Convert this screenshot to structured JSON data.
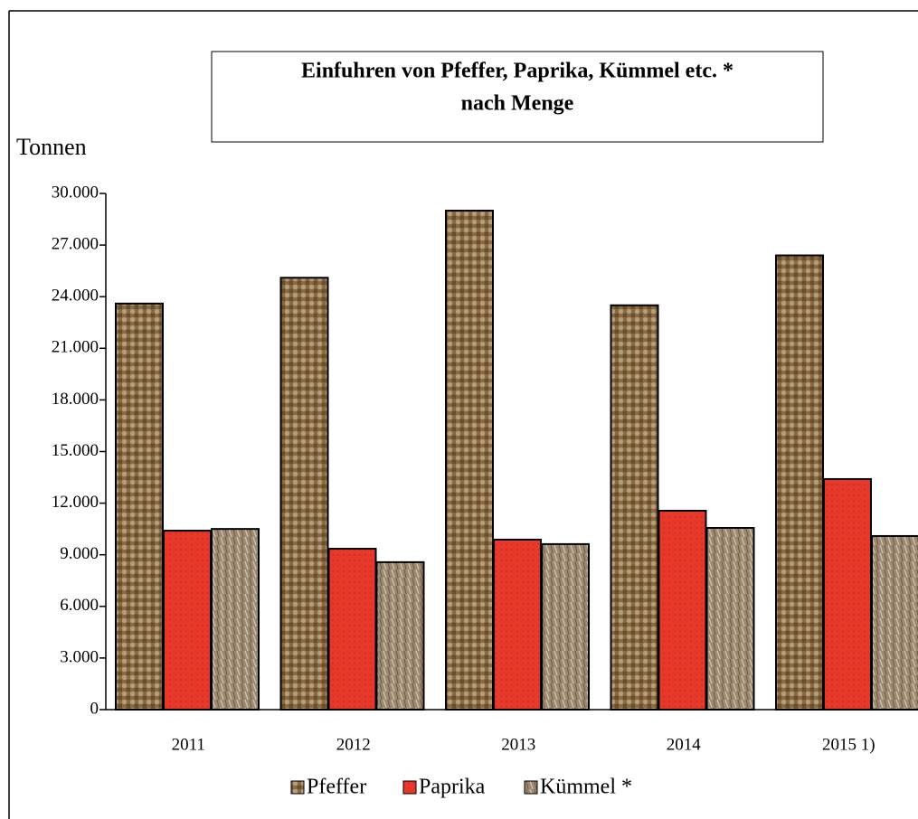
{
  "chart_data": {
    "type": "bar",
    "title": "Einfuhren von Pfeffer, Paprika, Kümmel etc. *",
    "subtitle": "nach Menge",
    "y_label": "Tonnen",
    "categories": [
      "2011",
      "2012",
      "2013",
      "2014",
      "2015 1)"
    ],
    "series": [
      {
        "name": "Pfeffer",
        "color": "#8a6a3e",
        "values": [
          23600,
          25100,
          29000,
          23500,
          26400
        ]
      },
      {
        "name": "Paprika",
        "color": "#e8382a",
        "values": [
          10400,
          9350,
          9880,
          11560,
          13400
        ]
      },
      {
        "name": "Kümmel *",
        "color": "#9e8a70",
        "values": [
          10500,
          8570,
          9620,
          10560,
          10090
        ]
      }
    ],
    "ylim": [
      0,
      30000
    ],
    "yticks": [
      0,
      {
        "value": 3000,
        "label": "3.000"
      },
      {
        "value": 6000,
        "label": "6.000"
      },
      {
        "value": 9000,
        "label": "9.000"
      },
      {
        "value": 12000,
        "label": "12.000"
      },
      {
        "value": 15000,
        "label": "15.000"
      },
      {
        "value": 18000,
        "label": "18.000"
      },
      {
        "value": 21000,
        "label": "21.000"
      },
      {
        "value": 24000,
        "label": "24.000"
      },
      {
        "value": 27000,
        "label": "27.000"
      },
      {
        "value": 30000,
        "label": "30.000"
      }
    ],
    "grid": false
  }
}
